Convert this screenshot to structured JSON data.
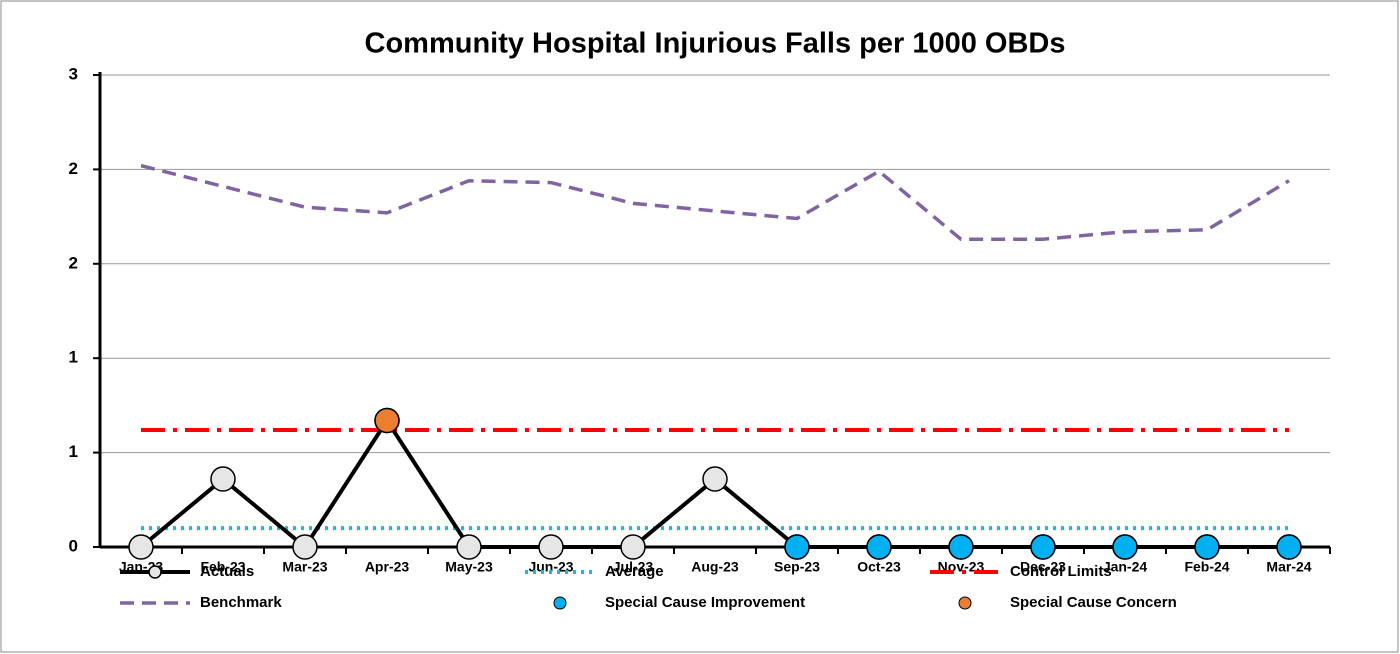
{
  "chart_data": {
    "type": "line",
    "title": "Community Hospital Injurious Falls per 1000 OBDs",
    "categories": [
      "Jan-23",
      "Feb-23",
      "Mar-23",
      "Apr-23",
      "May-23",
      "Jun-23",
      "Jul-23",
      "Aug-23",
      "Sep-23",
      "Oct-23",
      "Nov-23",
      "Dec-23",
      "Jan-24",
      "Feb-24",
      "Mar-24"
    ],
    "ylim": [
      0,
      2.5
    ],
    "yticks": [
      0,
      {
        "value": 0.5,
        "label": "1"
      },
      1,
      {
        "value": 1.5,
        "label": "2"
      },
      2,
      {
        "value": 2.5,
        "label": "3"
      }
    ],
    "grid": true,
    "legend": "bottom",
    "series": [
      {
        "name": "Actuals",
        "color": "#000000",
        "style": "solid-marker",
        "marker_color": "#e6e6e6",
        "values": [
          0,
          0.36,
          0,
          0.67,
          0,
          0,
          0,
          0.36,
          0,
          0,
          0,
          0,
          0,
          0,
          0
        ]
      },
      {
        "name": "Average",
        "color": "#1fb4e8",
        "style": "dotted",
        "values": [
          0.1,
          0.1,
          0.1,
          0.1,
          0.1,
          0.1,
          0.1,
          0.1,
          0.1,
          0.1,
          0.1,
          0.1,
          0.1,
          0.1,
          0.1
        ]
      },
      {
        "name": "Control Limits",
        "color": "#ff0000",
        "style": "dashdot",
        "values": [
          0.62,
          0.62,
          0.62,
          0.62,
          0.62,
          0.62,
          0.62,
          0.62,
          0.62,
          0.62,
          0.62,
          0.62,
          0.62,
          0.62,
          0.62
        ]
      },
      {
        "name": "Benchmark",
        "color": "#8064a2",
        "style": "dashed",
        "values": [
          2.02,
          1.91,
          1.8,
          1.77,
          1.94,
          1.93,
          1.82,
          1.78,
          1.74,
          1.99,
          1.63,
          1.63,
          1.67,
          1.68,
          1.94
        ]
      },
      {
        "name": "Special Cause Improvement",
        "color": "#00b0f0",
        "style": "marker",
        "values": [
          null,
          null,
          null,
          null,
          null,
          null,
          null,
          null,
          0,
          0,
          0,
          0,
          0,
          0,
          0
        ]
      },
      {
        "name": "Special Cause Concern",
        "color": "#ed7d31",
        "style": "marker",
        "values": [
          null,
          null,
          null,
          0.67,
          null,
          null,
          null,
          null,
          null,
          null,
          null,
          null,
          null,
          null,
          null
        ]
      }
    ]
  }
}
